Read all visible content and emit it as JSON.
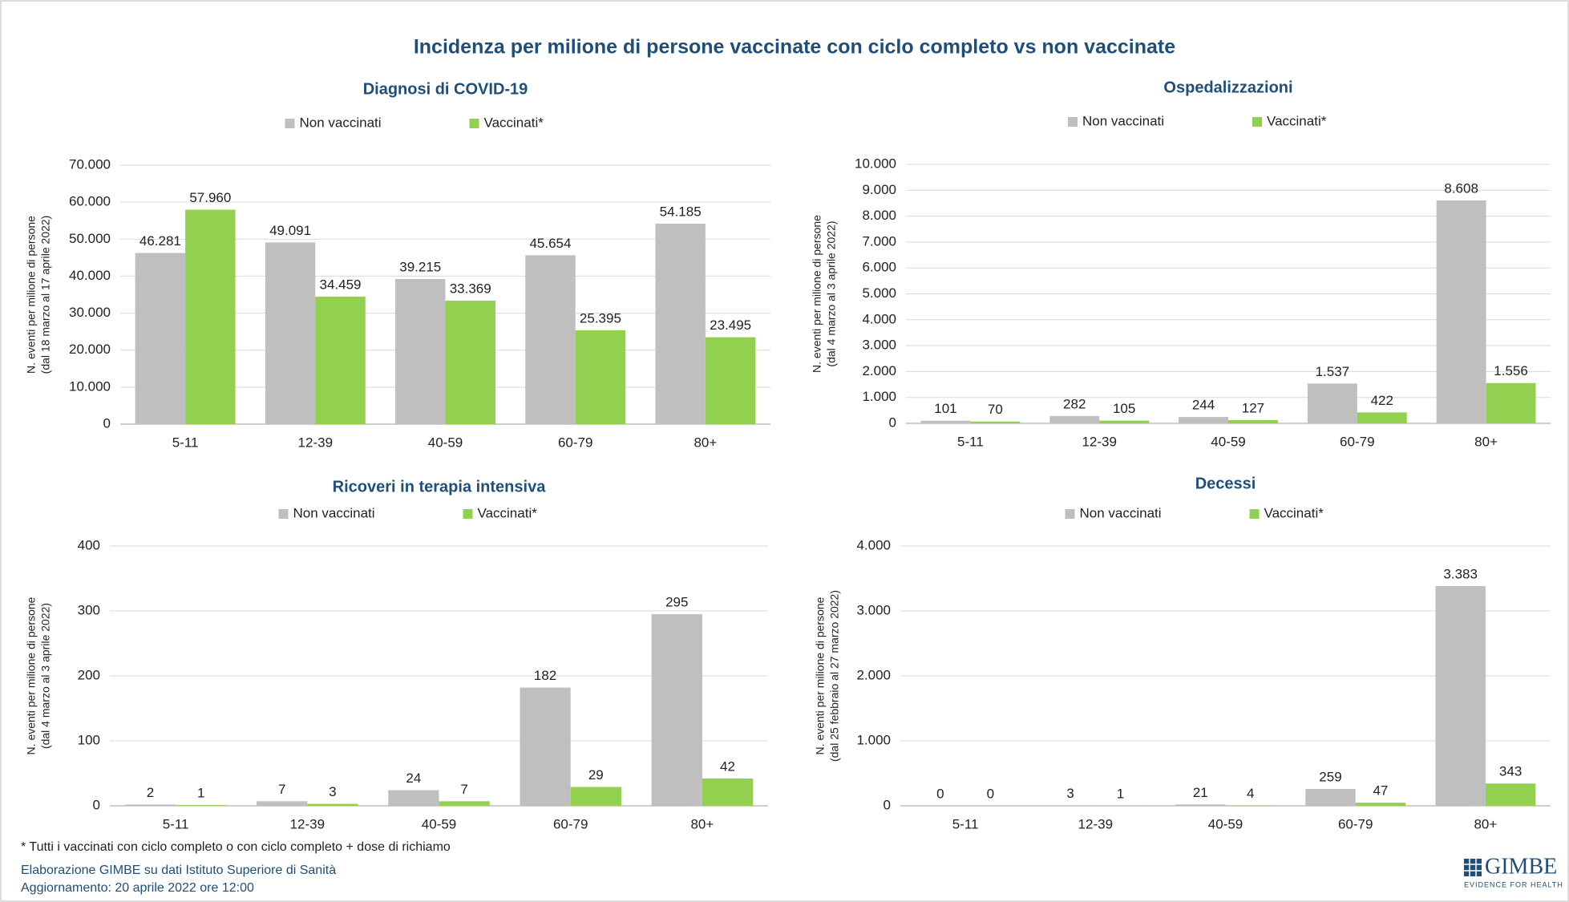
{
  "title": "Incidenza per milione di persone vaccinate con ciclo completo vs non vaccinate",
  "footnote": "* Tutti i vaccinati con ciclo completo o con ciclo completo +  dose di richiamo",
  "source": "Elaborazione GIMBE su dati Istituto Superiore di Sanità",
  "update": "Aggiornamento: 20 aprile 2022 ore 12:00",
  "logo": {
    "name": "GIMBE",
    "tagline": "EVIDENCE FOR HEALTH"
  },
  "chart_data": [
    {
      "type": "bar",
      "title": "Diagnosi di COVID-19",
      "ylabel": [
        "N. eventi per milione di persone",
        "(dal 18  marzo al 17  aprile 2022)"
      ],
      "categories": [
        "5-11",
        "12-39",
        "40-59",
        "60-79",
        "80+"
      ],
      "series": [
        {
          "name": "Non vaccinati",
          "color": "#bfbfbf",
          "values": [
            46281,
            49091,
            39215,
            45654,
            54185
          ],
          "value_labels": [
            "46.281",
            "49.091",
            "39.215",
            "45.654",
            "54.185"
          ]
        },
        {
          "name": "Vaccinati*",
          "color": "#92d050",
          "values": [
            57960,
            34459,
            33369,
            25395,
            23495
          ],
          "value_labels": [
            "57.960",
            "34.459",
            "33.369",
            "25.395",
            "23.495"
          ]
        }
      ],
      "ylim": [
        0,
        70000
      ],
      "yticks": [
        0,
        {
          "value": 10000,
          "label": "10.000"
        },
        {
          "value": 20000,
          "label": "20.000"
        },
        {
          "value": 30000,
          "label": "30.000"
        },
        {
          "value": 40000,
          "label": "40.000"
        },
        {
          "value": 50000,
          "label": "50.000"
        },
        {
          "value": 60000,
          "label": "60.000"
        },
        {
          "value": 70000,
          "label": "70.000"
        }
      ],
      "grid": true,
      "legend": "top"
    },
    {
      "type": "bar",
      "title": "Ospedalizzazioni",
      "ylabel": [
        "N. eventi per milione di persone",
        "(dal 4  marzo al 3  aprile 2022)"
      ],
      "categories": [
        "5-11",
        "12-39",
        "40-59",
        "60-79",
        "80+"
      ],
      "series": [
        {
          "name": "Non vaccinati",
          "color": "#bfbfbf",
          "values": [
            101,
            282,
            244,
            1537,
            8608
          ],
          "value_labels": [
            "101",
            "282",
            "244",
            "1.537",
            "8.608"
          ]
        },
        {
          "name": "Vaccinati*",
          "color": "#92d050",
          "values": [
            70,
            105,
            127,
            422,
            1556
          ],
          "value_labels": [
            "70",
            "105",
            "127",
            "422",
            "1.556"
          ]
        }
      ],
      "ylim": [
        0,
        10000
      ],
      "yticks": [
        0,
        {
          "value": 1000,
          "label": "1.000"
        },
        {
          "value": 2000,
          "label": "2.000"
        },
        {
          "value": 3000,
          "label": "3.000"
        },
        {
          "value": 4000,
          "label": "4.000"
        },
        {
          "value": 5000,
          "label": "5.000"
        },
        {
          "value": 6000,
          "label": "6.000"
        },
        {
          "value": 7000,
          "label": "7.000"
        },
        {
          "value": 8000,
          "label": "8.000"
        },
        {
          "value": 9000,
          "label": "9.000"
        },
        {
          "value": 10000,
          "label": "10.000"
        }
      ],
      "grid": true,
      "legend": "top"
    },
    {
      "type": "bar",
      "title": "Ricoveri in terapia intensiva",
      "ylabel": [
        "N. eventi per milione di persone",
        "(dal 4  marzo al 3  aprile 2022)"
      ],
      "categories": [
        "5-11",
        "12-39",
        "40-59",
        "60-79",
        "80+"
      ],
      "series": [
        {
          "name": "Non vaccinati",
          "color": "#bfbfbf",
          "values": [
            2,
            7,
            24,
            182,
            295
          ]
        },
        {
          "name": "Vaccinati*",
          "color": "#92d050",
          "values": [
            1,
            3,
            7,
            29,
            42
          ]
        }
      ],
      "ylim": [
        0,
        400
      ],
      "yticks": [
        0,
        100,
        200,
        300,
        400
      ],
      "grid": true,
      "legend": "top"
    },
    {
      "type": "bar",
      "title": "Decessi",
      "ylabel": [
        "N. eventi per milione di persone",
        "(dal 25  febbraio al 27  marzo 2022)"
      ],
      "categories": [
        "5-11",
        "12-39",
        "40-59",
        "60-79",
        "80+"
      ],
      "series": [
        {
          "name": "Non vaccinati",
          "color": "#bfbfbf",
          "values": [
            0,
            3,
            21,
            259,
            3383
          ],
          "value_labels": [
            "0",
            "3",
            "21",
            "259",
            "3.383"
          ]
        },
        {
          "name": "Vaccinati*",
          "color": "#92d050",
          "values": [
            0,
            1,
            4,
            47,
            343
          ]
        }
      ],
      "ylim": [
        0,
        4000
      ],
      "yticks": [
        0,
        {
          "value": 1000,
          "label": "1.000"
        },
        {
          "value": 2000,
          "label": "2.000"
        },
        {
          "value": 3000,
          "label": "3.000"
        },
        {
          "value": 4000,
          "label": "4.000"
        }
      ],
      "grid": true,
      "legend": "top"
    }
  ]
}
